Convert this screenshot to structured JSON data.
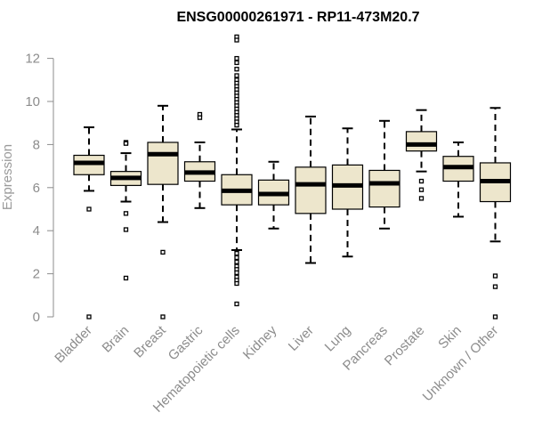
{
  "chart_data": {
    "type": "box",
    "title": "ENSG00000261971 - RP11-473M20.7",
    "ylabel": "Expression",
    "xlabel": "",
    "ylim": [
      0,
      12.5
    ],
    "yticks": [
      0,
      2,
      4,
      6,
      8,
      10,
      12
    ],
    "grid": false,
    "colors": {
      "box_fill": "#ede6cc",
      "box_stroke": "#000000",
      "median": "#000000",
      "axis": "#8c8c8c"
    },
    "categories": [
      "Bladder",
      "Brain",
      "Breast",
      "Gastric",
      "Hematopoietic cells",
      "Kidney",
      "Liver",
      "Lung",
      "Pancreas",
      "Prostate",
      "Skin",
      "Unknown / Other"
    ],
    "boxes": [
      {
        "name": "Bladder",
        "whisker_low": 5.85,
        "q1": 6.6,
        "median": 7.15,
        "q3": 7.5,
        "whisker_high": 8.8,
        "outliers": [
          5.0,
          0.0
        ]
      },
      {
        "name": "Brain",
        "whisker_low": 5.35,
        "q1": 6.1,
        "median": 6.45,
        "q3": 6.75,
        "whisker_high": 7.6,
        "outliers": [
          8.1,
          8.05,
          4.8,
          4.05,
          1.8
        ]
      },
      {
        "name": "Breast",
        "whisker_low": 4.4,
        "q1": 6.15,
        "median": 7.55,
        "q3": 8.1,
        "whisker_high": 9.8,
        "outliers": [
          3.0,
          0.0
        ]
      },
      {
        "name": "Gastric",
        "whisker_low": 5.05,
        "q1": 6.3,
        "median": 6.7,
        "q3": 7.2,
        "whisker_high": 8.1,
        "outliers": [
          9.4,
          9.25
        ]
      },
      {
        "name": "Hematopoietic cells",
        "whisker_low": 3.1,
        "q1": 5.2,
        "median": 5.85,
        "q3": 6.6,
        "whisker_high": 8.7,
        "outliers": [
          13.0,
          12.85,
          12.0,
          11.8,
          11.5,
          11.2,
          11.0,
          10.85,
          10.7,
          10.55,
          10.4,
          10.25,
          10.1,
          9.95,
          9.8,
          9.65,
          9.5,
          9.35,
          9.2,
          9.05,
          8.9,
          2.95,
          2.75,
          2.55,
          2.35,
          2.2,
          2.05,
          1.85,
          1.7,
          1.55,
          0.6
        ]
      },
      {
        "name": "Kidney",
        "whisker_low": 4.1,
        "q1": 5.2,
        "median": 5.7,
        "q3": 6.35,
        "whisker_high": 7.2,
        "outliers": []
      },
      {
        "name": "Liver",
        "whisker_low": 2.5,
        "q1": 4.8,
        "median": 6.15,
        "q3": 6.95,
        "whisker_high": 9.3,
        "outliers": []
      },
      {
        "name": "Lung",
        "whisker_low": 2.8,
        "q1": 5.0,
        "median": 6.1,
        "q3": 7.05,
        "whisker_high": 8.75,
        "outliers": []
      },
      {
        "name": "Pancreas",
        "whisker_low": 4.1,
        "q1": 5.1,
        "median": 6.2,
        "q3": 6.8,
        "whisker_high": 9.1,
        "outliers": []
      },
      {
        "name": "Prostate",
        "whisker_low": 6.75,
        "q1": 7.7,
        "median": 8.0,
        "q3": 8.6,
        "whisker_high": 9.6,
        "outliers": [
          6.3,
          5.9,
          5.5
        ]
      },
      {
        "name": "Skin",
        "whisker_low": 4.65,
        "q1": 6.3,
        "median": 6.95,
        "q3": 7.45,
        "whisker_high": 8.1,
        "outliers": []
      },
      {
        "name": "Unknown / Other",
        "whisker_low": 3.5,
        "q1": 5.35,
        "median": 6.3,
        "q3": 7.15,
        "whisker_high": 9.7,
        "outliers": [
          1.9,
          1.4,
          0.0
        ]
      }
    ]
  }
}
